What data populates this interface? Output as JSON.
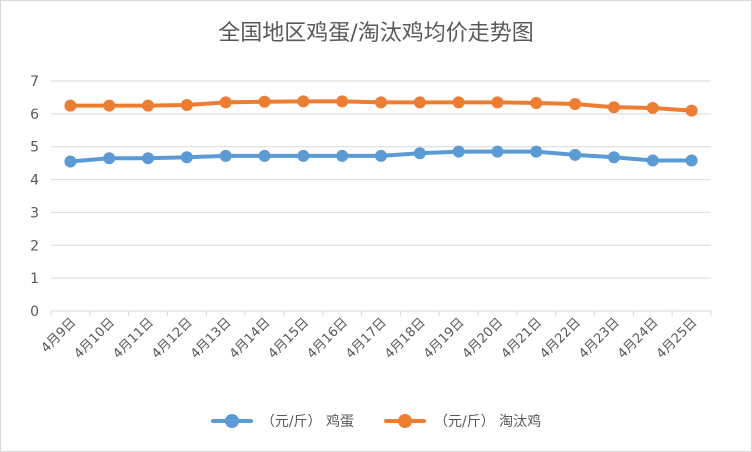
{
  "colors": {
    "egg": "#5B9BD5",
    "hen": "#ED7D31",
    "grid": "#d9d9d9",
    "text": "#595959"
  },
  "chart_data": {
    "type": "line",
    "title": "全国地区鸡蛋/淘汰鸡均价走势图",
    "xlabel": "",
    "ylabel": "",
    "ylim": [
      0,
      7
    ],
    "yticks": [
      "0",
      "1",
      "2",
      "3",
      "4",
      "5",
      "6",
      "7"
    ],
    "grid": true,
    "legend_position": "bottom",
    "categories": [
      "4月9日",
      "4月10日",
      "4月11日",
      "4月12日",
      "4月13日",
      "4月14日",
      "4月15日",
      "4月16日",
      "4月17日",
      "4月18日",
      "4月19日",
      "4月20日",
      "4月21日",
      "4月22日",
      "4月23日",
      "4月24日",
      "4月25日"
    ],
    "series": [
      {
        "name": "（元/斤） 鸡蛋",
        "color": "#5B9BD5",
        "values": [
          4.55,
          4.65,
          4.65,
          4.68,
          4.72,
          4.72,
          4.72,
          4.72,
          4.72,
          4.8,
          4.85,
          4.85,
          4.85,
          4.75,
          4.68,
          4.58,
          4.58
        ]
      },
      {
        "name": "（元/斤） 淘汰鸡",
        "color": "#ED7D31",
        "values": [
          6.25,
          6.25,
          6.25,
          6.27,
          6.35,
          6.37,
          6.38,
          6.38,
          6.35,
          6.35,
          6.35,
          6.35,
          6.33,
          6.3,
          6.2,
          6.18,
          6.1
        ]
      }
    ]
  }
}
